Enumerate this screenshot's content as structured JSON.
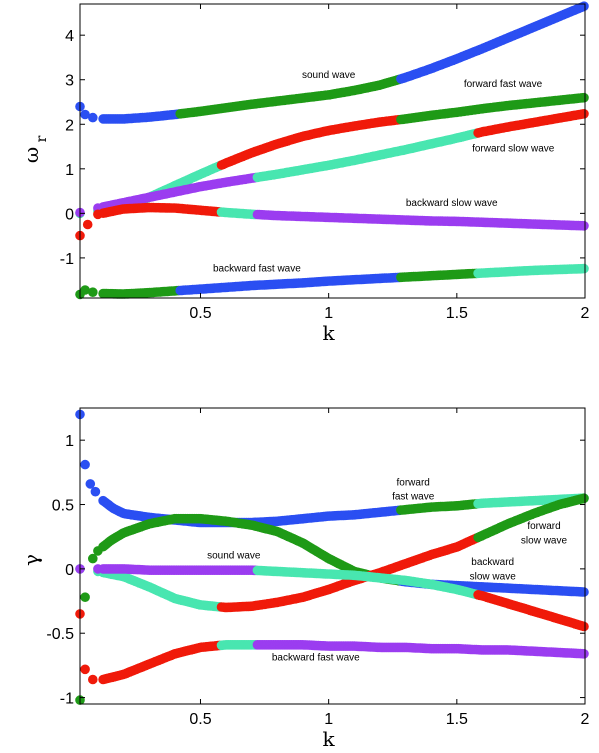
{
  "chart_data": [
    {
      "type": "scatter",
      "xlabel": "k",
      "ylabel_main": "ω",
      "ylabel_sub": "r",
      "xlim": [
        0.03,
        2.0
      ],
      "ylim": [
        -1.9,
        4.7
      ],
      "xticks": [
        "0.5",
        "1",
        "1.5",
        "2"
      ],
      "yticks": [
        "-1",
        "0",
        "1",
        "2",
        "3",
        "4"
      ],
      "colors": {
        "blue": "#2b4ff2",
        "green": "#1f9a17",
        "red": "#f01a0a",
        "cyan": "#49e6b0",
        "purple": "#9b3df0"
      },
      "branches": [
        {
          "label": "sound wave",
          "x": [
            0.03,
            0.05,
            0.08,
            0.12,
            0.2,
            0.3,
            0.4,
            0.5,
            0.6,
            0.7,
            0.8,
            0.9,
            1.0,
            1.1,
            1.2,
            1.3,
            1.4,
            1.5,
            1.6,
            1.7,
            1.8,
            1.9,
            2.0
          ],
          "y": [
            2.4,
            2.22,
            2.15,
            2.12,
            2.12,
            2.16,
            2.22,
            2.29,
            2.37,
            2.45,
            2.52,
            2.59,
            2.66,
            2.76,
            2.88,
            3.05,
            3.25,
            3.47,
            3.7,
            3.94,
            4.18,
            4.42,
            4.66
          ],
          "segments": [
            [
              0.03,
              0.42,
              "blue"
            ],
            [
              0.42,
              1.28,
              "green"
            ],
            [
              1.28,
              2.0,
              "blue"
            ]
          ]
        },
        {
          "label": "forward fast wave",
          "x": [
            0.03,
            0.1,
            0.2,
            0.3,
            0.4,
            0.5,
            0.6,
            0.7,
            0.8,
            0.9,
            1.0,
            1.1,
            1.2,
            1.3,
            1.4,
            1.5,
            1.6,
            1.7,
            1.8,
            1.9,
            2.0
          ],
          "y": [
            0.0,
            0.05,
            0.16,
            0.36,
            0.62,
            0.88,
            1.13,
            1.36,
            1.56,
            1.73,
            1.86,
            1.96,
            2.05,
            2.12,
            2.2,
            2.27,
            2.35,
            2.42,
            2.48,
            2.54,
            2.6
          ],
          "segments": [
            [
              0.03,
              0.58,
              "cyan"
            ],
            [
              0.58,
              1.28,
              "red"
            ],
            [
              1.28,
              1.58,
              "green"
            ],
            [
              1.58,
              2.0,
              "green"
            ]
          ]
        },
        {
          "label": "forward slow wave",
          "x": [
            0.03,
            0.1,
            0.2,
            0.3,
            0.4,
            0.5,
            0.6,
            0.7,
            0.8,
            0.9,
            1.0,
            1.1,
            1.2,
            1.3,
            1.4,
            1.5,
            1.6,
            1.7,
            1.8,
            1.9,
            2.0
          ],
          "y": [
            0.02,
            0.12,
            0.24,
            0.36,
            0.48,
            0.6,
            0.7,
            0.79,
            0.88,
            0.98,
            1.08,
            1.19,
            1.31,
            1.43,
            1.56,
            1.69,
            1.83,
            1.94,
            2.04,
            2.14,
            2.24
          ],
          "segments": [
            [
              0.03,
              0.72,
              "purple"
            ],
            [
              0.72,
              1.58,
              "cyan"
            ],
            [
              1.58,
              2.0,
              "red"
            ]
          ]
        },
        {
          "label": "backward slow wave",
          "x": [
            0.03,
            0.06,
            0.1,
            0.2,
            0.3,
            0.4,
            0.5,
            0.6,
            0.7,
            0.8,
            0.9,
            1.0,
            1.1,
            1.2,
            1.3,
            1.4,
            1.5,
            1.6,
            1.7,
            1.8,
            1.9,
            2.0
          ],
          "y": [
            -0.5,
            -0.25,
            -0.02,
            0.1,
            0.13,
            0.12,
            0.07,
            0.02,
            -0.02,
            -0.05,
            -0.07,
            -0.09,
            -0.11,
            -0.13,
            -0.15,
            -0.17,
            -0.18,
            -0.2,
            -0.22,
            -0.24,
            -0.26,
            -0.28
          ],
          "segments": [
            [
              0.03,
              0.58,
              "red"
            ],
            [
              0.58,
              0.72,
              "cyan"
            ],
            [
              0.72,
              2.0,
              "purple"
            ]
          ]
        },
        {
          "label": "backward fast wave",
          "x": [
            0.03,
            0.05,
            0.08,
            0.12,
            0.2,
            0.3,
            0.4,
            0.5,
            0.6,
            0.7,
            0.8,
            0.9,
            1.0,
            1.1,
            1.2,
            1.3,
            1.4,
            1.5,
            1.6,
            1.7,
            1.8,
            1.9,
            2.0
          ],
          "y": [
            -1.82,
            -1.72,
            -1.77,
            -1.8,
            -1.81,
            -1.78,
            -1.74,
            -1.7,
            -1.66,
            -1.62,
            -1.59,
            -1.56,
            -1.52,
            -1.49,
            -1.46,
            -1.43,
            -1.4,
            -1.37,
            -1.34,
            -1.31,
            -1.28,
            -1.26,
            -1.24
          ],
          "segments": [
            [
              0.03,
              0.42,
              "green"
            ],
            [
              0.42,
              1.28,
              "blue"
            ],
            [
              1.28,
              1.58,
              "green"
            ],
            [
              1.58,
              2.0,
              "cyan"
            ]
          ]
        }
      ],
      "annotations": [
        {
          "text": "sound wave",
          "x": 1.0,
          "y": 3.13
        },
        {
          "text": "forward fast wave",
          "x": 1.68,
          "y": 2.93
        },
        {
          "text": "forward slow wave",
          "x": 1.72,
          "y": 1.48
        },
        {
          "text": "backward slow wave",
          "x": 1.48,
          "y": 0.26
        },
        {
          "text": "backward fast wave",
          "x": 0.72,
          "y": -1.22
        }
      ]
    },
    {
      "type": "scatter",
      "xlabel": "k",
      "ylabel_main": "γ",
      "ylabel_sub": "",
      "xlim": [
        0.03,
        2.0
      ],
      "ylim": [
        -1.05,
        1.25
      ],
      "xticks": [
        "0.5",
        "1",
        "1.5",
        "2"
      ],
      "yticks": [
        "-1",
        "-0.5",
        "0",
        "0.5",
        "1"
      ],
      "colors": {
        "blue": "#2b4ff2",
        "green": "#1f9a17",
        "red": "#f01a0a",
        "cyan": "#49e6b0",
        "purple": "#9b3df0"
      },
      "branches": [
        {
          "label": "sound wave",
          "x": [
            0.03,
            0.05,
            0.07,
            0.09,
            0.12,
            0.16,
            0.2,
            0.3,
            0.4,
            0.5,
            0.6,
            0.7,
            0.8,
            0.9,
            1.0,
            1.1,
            1.2,
            1.3,
            1.4,
            1.5,
            1.6,
            1.7,
            1.8,
            1.9,
            2.0
          ],
          "y": [
            1.2,
            0.81,
            0.66,
            0.6,
            0.53,
            0.47,
            0.43,
            0.4,
            0.38,
            0.36,
            0.36,
            0.36,
            0.37,
            0.39,
            0.41,
            0.42,
            0.44,
            0.46,
            0.48,
            0.49,
            0.51,
            0.52,
            0.53,
            0.54,
            0.55
          ],
          "segments": [
            [
              0.03,
              1.28,
              "blue"
            ],
            [
              1.28,
              1.58,
              "green"
            ],
            [
              1.58,
              2.0,
              "cyan"
            ]
          ]
        },
        {
          "label": "forward fast wave",
          "x": [
            0.03,
            0.05,
            0.08,
            0.1,
            0.15,
            0.2,
            0.3,
            0.4,
            0.5,
            0.6,
            0.7,
            0.8,
            0.9,
            1.0,
            1.1,
            1.2,
            1.3,
            1.4,
            1.5,
            1.6,
            1.7,
            1.8,
            1.9,
            2.0
          ],
          "y": [
            -1.02,
            -0.22,
            0.08,
            0.14,
            0.22,
            0.28,
            0.35,
            0.39,
            0.39,
            0.37,
            0.34,
            0.29,
            0.2,
            0.08,
            -0.02,
            -0.07,
            -0.1,
            -0.12,
            -0.13,
            -0.14,
            -0.15,
            -0.16,
            -0.17,
            -0.18
          ],
          "segments": [
            [
              0.03,
              0.72,
              "green"
            ],
            [
              0.72,
              1.28,
              "green"
            ],
            [
              1.28,
              2.0,
              "blue"
            ]
          ]
        },
        {
          "label": "forward slow wave",
          "x": [
            0.03,
            0.1,
            0.2,
            0.3,
            0.4,
            0.5,
            0.6,
            0.7,
            0.8,
            0.9,
            1.0,
            1.1,
            1.2,
            1.3,
            1.4,
            1.5,
            1.6,
            1.7,
            1.8,
            1.9,
            2.0
          ],
          "y": [
            -0.0,
            -0.02,
            -0.06,
            -0.14,
            -0.23,
            -0.28,
            -0.3,
            -0.29,
            -0.26,
            -0.22,
            -0.16,
            -0.09,
            -0.03,
            0.04,
            0.11,
            0.17,
            0.26,
            0.35,
            0.43,
            0.5,
            0.55
          ],
          "segments": [
            [
              0.03,
              0.58,
              "cyan"
            ],
            [
              0.58,
              1.58,
              "red"
            ],
            [
              1.58,
              2.0,
              "green"
            ]
          ]
        },
        {
          "label": "backward slow wave",
          "x": [
            0.03,
            0.1,
            0.2,
            0.3,
            0.4,
            0.5,
            0.6,
            0.7,
            0.8,
            0.9,
            1.0,
            1.1,
            1.2,
            1.3,
            1.4,
            1.5,
            1.6,
            1.7,
            1.8,
            1.9,
            2.0
          ],
          "y": [
            0.0,
            0.0,
            -0.0,
            -0.01,
            -0.01,
            -0.01,
            -0.01,
            -0.01,
            -0.02,
            -0.03,
            -0.04,
            -0.05,
            -0.07,
            -0.09,
            -0.12,
            -0.16,
            -0.21,
            -0.27,
            -0.33,
            -0.39,
            -0.45
          ],
          "segments": [
            [
              0.03,
              0.72,
              "purple"
            ],
            [
              0.72,
              1.58,
              "cyan"
            ],
            [
              1.58,
              2.0,
              "red"
            ]
          ]
        },
        {
          "label": "backward fast wave",
          "x": [
            0.03,
            0.05,
            0.08,
            0.12,
            0.2,
            0.3,
            0.4,
            0.5,
            0.6,
            0.7,
            0.8,
            0.9,
            1.0,
            1.1,
            1.2,
            1.3,
            1.4,
            1.5,
            1.6,
            1.7,
            1.8,
            1.9,
            2.0
          ],
          "y": [
            -0.35,
            -0.78,
            -0.86,
            -0.86,
            -0.82,
            -0.74,
            -0.66,
            -0.61,
            -0.59,
            -0.59,
            -0.59,
            -0.59,
            -0.6,
            -0.6,
            -0.61,
            -0.61,
            -0.62,
            -0.62,
            -0.63,
            -0.63,
            -0.64,
            -0.65,
            -0.66
          ],
          "segments": [
            [
              0.03,
              0.58,
              "red"
            ],
            [
              0.58,
              0.72,
              "cyan"
            ],
            [
              0.72,
              2.0,
              "purple"
            ]
          ]
        }
      ],
      "annotations": [
        {
          "text": "forward",
          "x": 1.33,
          "y": 0.68
        },
        {
          "text": "fast wave",
          "x": 1.33,
          "y": 0.57
        },
        {
          "text": "forward",
          "x": 1.84,
          "y": 0.34
        },
        {
          "text": "slow wave",
          "x": 1.84,
          "y": 0.23
        },
        {
          "text": "sound wave",
          "x": 0.63,
          "y": 0.11
        },
        {
          "text": "backward",
          "x": 1.64,
          "y": 0.06
        },
        {
          "text": "slow wave",
          "x": 1.64,
          "y": -0.05
        },
        {
          "text": "backward fast wave",
          "x": 0.95,
          "y": -0.68
        }
      ]
    }
  ]
}
